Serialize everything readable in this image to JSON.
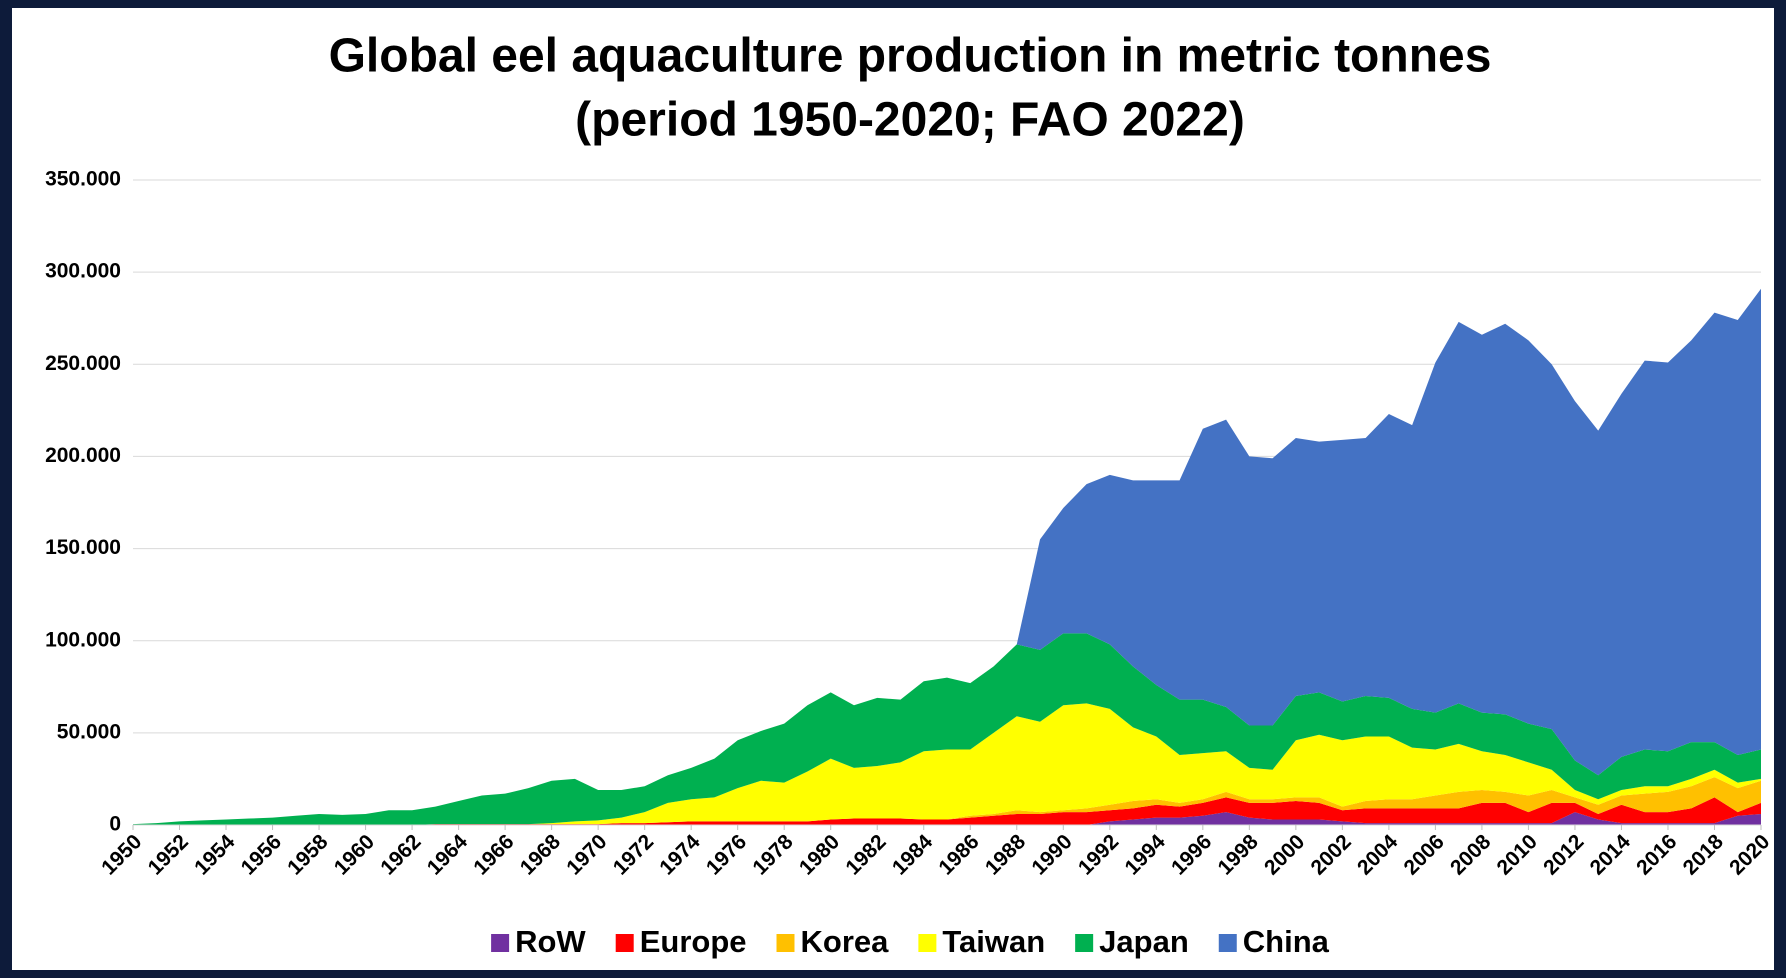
{
  "chart_data": {
    "type": "stacked_area",
    "title": "Global eel aquaculture production in metric tonnes",
    "subtitle": "(period 1950-2020; FAO 2022)",
    "x": [
      1950,
      1951,
      1952,
      1953,
      1954,
      1955,
      1956,
      1957,
      1958,
      1959,
      1960,
      1961,
      1962,
      1963,
      1964,
      1965,
      1966,
      1967,
      1968,
      1969,
      1970,
      1971,
      1972,
      1973,
      1974,
      1975,
      1976,
      1977,
      1978,
      1979,
      1980,
      1981,
      1982,
      1983,
      1984,
      1985,
      1986,
      1987,
      1988,
      1989,
      1990,
      1991,
      1992,
      1993,
      1994,
      1995,
      1996,
      1997,
      1998,
      1999,
      2000,
      2001,
      2002,
      2003,
      2004,
      2005,
      2006,
      2007,
      2008,
      2009,
      2010,
      2011,
      2012,
      2013,
      2014,
      2015,
      2016,
      2017,
      2018,
      2019,
      2020
    ],
    "xlim": [
      1950,
      2020
    ],
    "xticks": [
      1950,
      1952,
      1954,
      1956,
      1958,
      1960,
      1962,
      1964,
      1966,
      1968,
      1970,
      1972,
      1974,
      1976,
      1978,
      1980,
      1982,
      1984,
      1986,
      1988,
      1990,
      1992,
      1994,
      1996,
      1998,
      2000,
      2002,
      2004,
      2006,
      2008,
      2010,
      2012,
      2014,
      2016,
      2018,
      2020
    ],
    "ylim": [
      0,
      350000
    ],
    "yticks": [
      {
        "value": 0,
        "label": "0"
      },
      {
        "value": 50000,
        "label": "50.000"
      },
      {
        "value": 100000,
        "label": "100.000"
      },
      {
        "value": 150000,
        "label": "150.000"
      },
      {
        "value": 200000,
        "label": "200.000"
      },
      {
        "value": 250000,
        "label": "250.000"
      },
      {
        "value": 300000,
        "label": "300.000"
      },
      {
        "value": 350000,
        "label": "350.000"
      }
    ],
    "grid": true,
    "legend": "bottom",
    "series": [
      {
        "name": "RoW",
        "color": "#7030a0",
        "values": [
          0,
          0,
          0,
          0,
          0,
          0,
          0,
          0,
          0,
          0,
          0,
          0,
          0,
          0,
          0,
          0,
          0,
          0,
          0,
          0,
          0,
          0,
          0,
          0,
          0,
          0,
          0,
          0,
          0,
          0,
          0,
          0,
          0,
          0,
          0,
          0,
          0,
          0,
          0,
          0,
          0,
          0,
          2000,
          3000,
          4000,
          4000,
          5000,
          7000,
          4000,
          3000,
          3000,
          3000,
          2000,
          1000,
          1000,
          1000,
          1000,
          1000,
          1000,
          1000,
          1000,
          1000,
          7000,
          3000,
          1000,
          1000,
          1000,
          1000,
          1000,
          5000,
          6000
        ]
      },
      {
        "name": "Europe",
        "color": "#ff0000",
        "values": [
          0,
          0,
          0,
          0,
          0,
          0,
          0,
          0,
          0,
          0,
          0,
          0,
          0,
          500,
          500,
          500,
          500,
          500,
          500,
          500,
          500,
          1000,
          1000,
          1500,
          2000,
          2000,
          2000,
          2000,
          2000,
          2000,
          3000,
          3500,
          3500,
          3500,
          3000,
          3000,
          4000,
          5000,
          6000,
          6000,
          7000,
          7000,
          6000,
          6000,
          7000,
          6000,
          7000,
          8000,
          8000,
          9000,
          10000,
          9000,
          6000,
          8000,
          8000,
          8000,
          8000,
          8000,
          11000,
          11000,
          6000,
          11000,
          5000,
          3000,
          10000,
          6000,
          6000,
          8000,
          14000,
          2000,
          6000
        ]
      },
      {
        "name": "Korea",
        "color": "#ffc000",
        "values": [
          0,
          0,
          0,
          0,
          0,
          0,
          0,
          0,
          0,
          0,
          0,
          0,
          0,
          0,
          0,
          0,
          0,
          0,
          0,
          0,
          0,
          0,
          0,
          0,
          0,
          0,
          0,
          0,
          0,
          0,
          0,
          0,
          0,
          0,
          0,
          0,
          1000,
          1000,
          2000,
          1000,
          1000,
          2000,
          3000,
          4000,
          3000,
          2000,
          2000,
          3000,
          2000,
          2000,
          2000,
          3000,
          2000,
          4000,
          5000,
          5000,
          7000,
          9000,
          7000,
          6000,
          9000,
          7000,
          3000,
          5000,
          5000,
          10000,
          11000,
          12000,
          11000,
          13000,
          12000
        ]
      },
      {
        "name": "Taiwan",
        "color": "#ffff00",
        "values": [
          0,
          0,
          0,
          0,
          0,
          0,
          0,
          0,
          0,
          0,
          0,
          0,
          0,
          0,
          0,
          0,
          0,
          0,
          500,
          1500,
          2000,
          3000,
          6000,
          10500,
          12000,
          13000,
          18000,
          22000,
          21000,
          27000,
          33000,
          27500,
          28500,
          30500,
          37000,
          38000,
          36000,
          44000,
          51000,
          49000,
          57000,
          57000,
          52000,
          40000,
          34000,
          26000,
          25000,
          22000,
          17000,
          16000,
          31000,
          34000,
          36000,
          35000,
          34000,
          28000,
          25000,
          26000,
          21000,
          20000,
          18000,
          11000,
          4000,
          3000,
          3000,
          4000,
          3000,
          4000,
          4000,
          3000,
          1000
        ]
      },
      {
        "name": "Japan",
        "color": "#00b050",
        "values": [
          500,
          1000,
          2000,
          2500,
          3000,
          3500,
          4000,
          5000,
          6000,
          5500,
          6000,
          8000,
          8000,
          9500,
          12500,
          15500,
          16500,
          19500,
          23000,
          23000,
          16500,
          15000,
          14000,
          15000,
          17000,
          21000,
          26000,
          27000,
          32000,
          36000,
          36000,
          34000,
          37000,
          34000,
          38000,
          39000,
          36000,
          36000,
          39000,
          39000,
          39000,
          38000,
          35000,
          33000,
          28000,
          30000,
          29000,
          24000,
          23000,
          24000,
          24000,
          23000,
          21000,
          22000,
          21000,
          21000,
          20000,
          22000,
          21000,
          22000,
          21000,
          22000,
          16000,
          13000,
          18000,
          20000,
          19000,
          20000,
          15000,
          15000,
          16000
        ]
      },
      {
        "name": "China",
        "color": "#4472c4",
        "values": [
          0,
          0,
          0,
          0,
          0,
          0,
          0,
          0,
          0,
          0,
          0,
          0,
          0,
          0,
          0,
          0,
          0,
          0,
          0,
          0,
          0,
          0,
          0,
          0,
          0,
          0,
          0,
          0,
          0,
          0,
          0,
          0,
          0,
          0,
          0,
          0,
          0,
          0,
          0,
          60000,
          68000,
          81000,
          92000,
          101000,
          111000,
          119000,
          147000,
          156000,
          146000,
          145000,
          140000,
          136000,
          142000,
          140000,
          154000,
          154000,
          190000,
          207000,
          205000,
          212000,
          208000,
          198000,
          195000,
          187000,
          197000,
          211000,
          211000,
          218000,
          233000,
          236000,
          250000
        ]
      }
    ]
  }
}
